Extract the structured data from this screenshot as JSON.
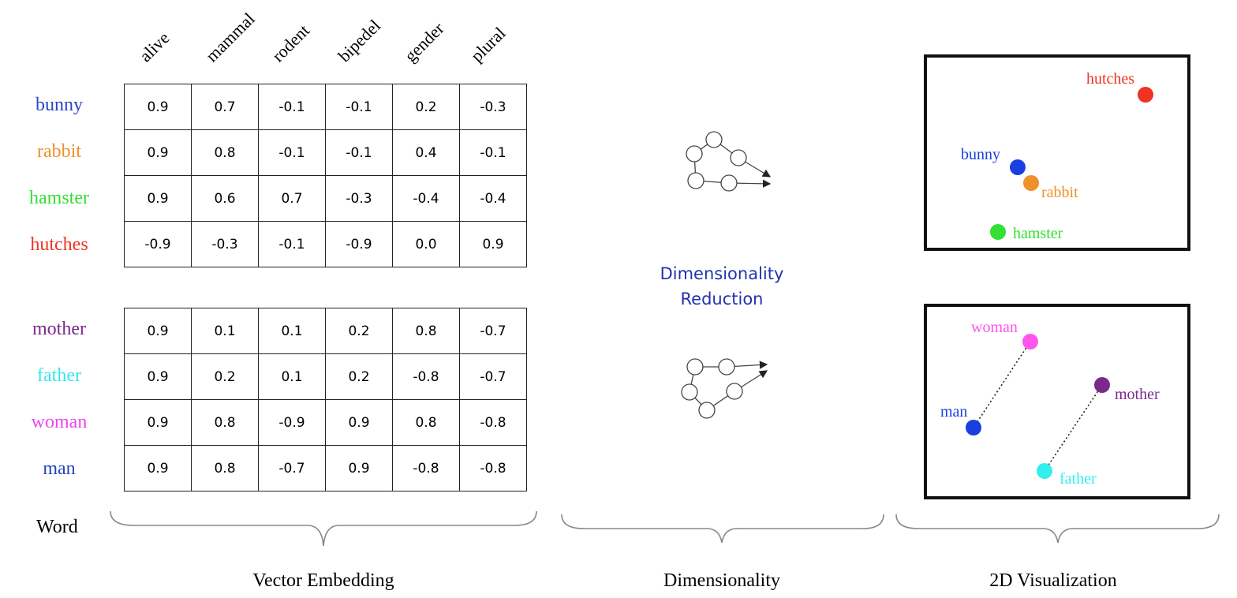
{
  "columns": [
    "alive",
    "mammal",
    "rodent",
    "bipedel",
    "gender",
    "plural"
  ],
  "group1": [
    {
      "word": "bunny",
      "color": "#2b44c8",
      "values": [
        "0.9",
        "0.7",
        "-0.1",
        "-0.1",
        "0.2",
        "-0.3"
      ]
    },
    {
      "word": "rabbit",
      "color": "#f0902a",
      "values": [
        "0.9",
        "0.8",
        "-0.1",
        "-0.1",
        "0.4",
        "-0.1"
      ]
    },
    {
      "word": "hamster",
      "color": "#33e033",
      "values": [
        "0.9",
        "0.6",
        "0.7",
        "-0.3",
        "-0.4",
        "-0.4"
      ]
    },
    {
      "word": "hutches",
      "color": "#ee3322",
      "values": [
        "-0.9",
        "-0.3",
        "-0.1",
        "-0.9",
        "0.0",
        "0.9"
      ]
    }
  ],
  "group2": [
    {
      "word": "mother",
      "color": "#7a2a8a",
      "values": [
        "0.9",
        "0.1",
        "0.1",
        "0.2",
        "0.8",
        "-0.7"
      ]
    },
    {
      "word": "father",
      "color": "#33e8ee",
      "values": [
        "0.9",
        "0.2",
        "0.1",
        "0.2",
        "-0.8",
        "-0.7"
      ]
    },
    {
      "word": "woman",
      "color": "#ee44ee",
      "values": [
        "0.9",
        "0.8",
        "-0.9",
        "0.9",
        "0.8",
        "-0.8"
      ]
    },
    {
      "word": "man",
      "color": "#2244bb",
      "values": [
        "0.9",
        "0.8",
        "-0.7",
        "0.9",
        "-0.8",
        "-0.8"
      ]
    }
  ],
  "center_title_line1": "Dimensionality",
  "center_title_line2": "Reduction",
  "labels": {
    "word": "Word",
    "vector_embedding": "Vector Embedding",
    "dimensionality": "Dimensionality",
    "visualization": "2D Visualization"
  },
  "plot1_points": [
    {
      "word": "hutches",
      "color": "#ee3322"
    },
    {
      "word": "bunny",
      "color": "#1a3fe0"
    },
    {
      "word": "rabbit",
      "color": "#f0902a"
    },
    {
      "word": "hamster",
      "color": "#33e033"
    }
  ],
  "plot2_points": [
    {
      "word": "woman",
      "color": "#ff55ee"
    },
    {
      "word": "man",
      "color": "#1a3fe0"
    },
    {
      "word": "mother",
      "color": "#7a2a8a"
    },
    {
      "word": "father",
      "color": "#33eeee"
    }
  ]
}
